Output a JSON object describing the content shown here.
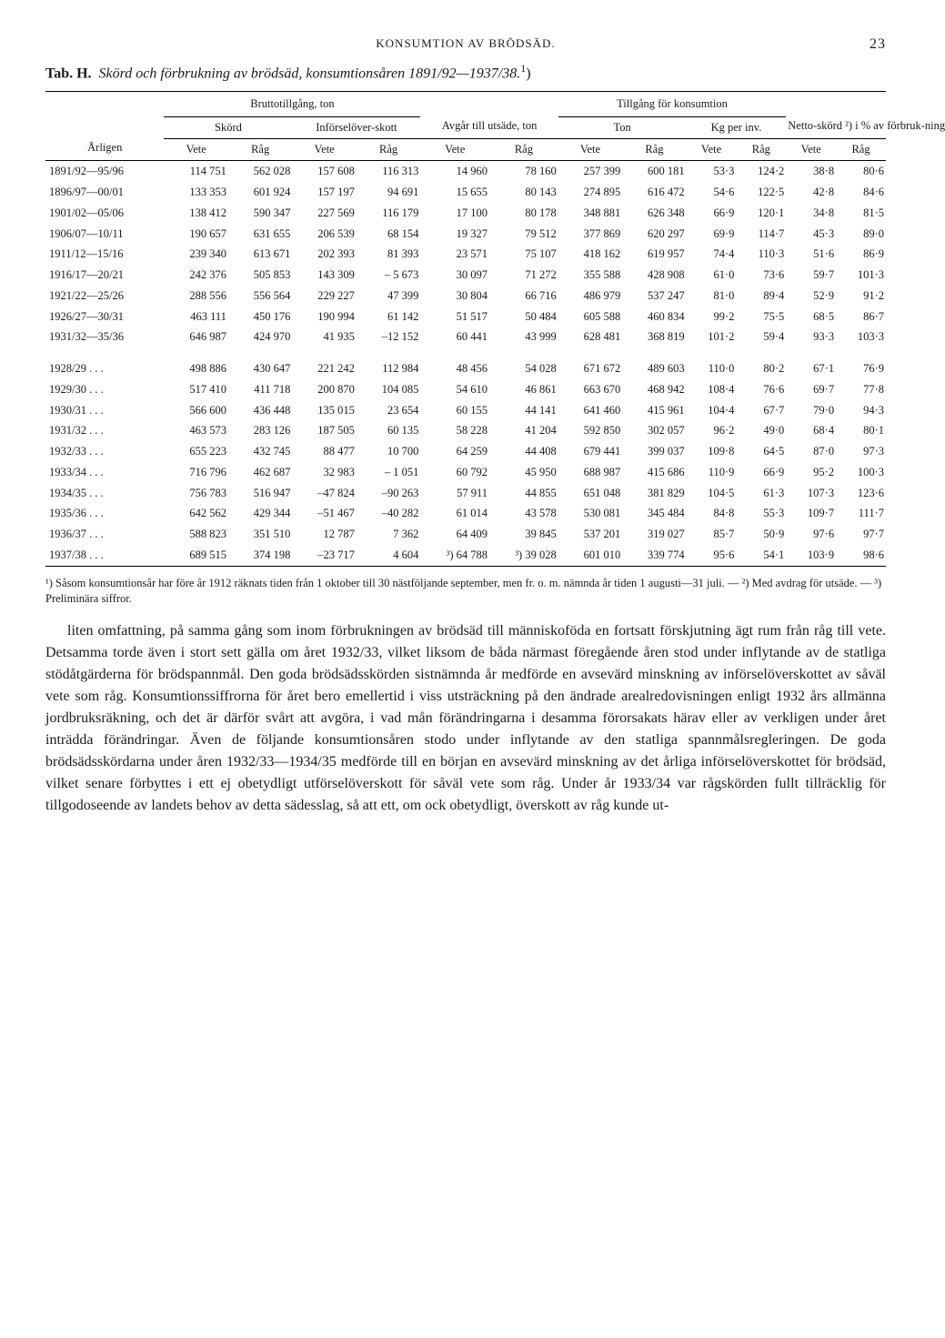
{
  "header": {
    "running_head": "KONSUMTION AV BRÖDSÄD.",
    "page_number": "23"
  },
  "tableTitle": {
    "prefix": "Tab. H.",
    "italic": "Skörd och förbrukning av brödsäd, konsumtionsåren 1891/92—1937/38.",
    "sup": "1",
    "suffix": ")"
  },
  "colHeaders": {
    "brutto": "Bruttotillgång, ton",
    "avgar": "Avgår till utsäde, ton",
    "tillgang": "Tillgång för konsumtion",
    "netto": "Netto-skörd ²) i % av förbruk-ning",
    "arligen": "Årligen",
    "skord": "Skörd",
    "inforsel": "Införselöver-skott",
    "ton": "Ton",
    "kgperinv": "Kg per inv.",
    "vete": "Vete",
    "rag": "Råg"
  },
  "rows": [
    {
      "period": "1891/92—95/96",
      "sv": "114 751",
      "sr": "562 028",
      "iv": "157 608",
      "ir": "116 313",
      "av": "14 960",
      "ar": "78 160",
      "tv": "257 399",
      "tr": "600 181",
      "kv": "53·3",
      "kr": "124·2",
      "nv": "38·8",
      "nr": "80·6"
    },
    {
      "period": "1896/97—00/01",
      "sv": "133 353",
      "sr": "601 924",
      "iv": "157 197",
      "ir": "94 691",
      "av": "15 655",
      "ar": "80 143",
      "tv": "274 895",
      "tr": "616 472",
      "kv": "54·6",
      "kr": "122·5",
      "nv": "42·8",
      "nr": "84·6"
    },
    {
      "period": "1901/02—05/06",
      "sv": "138 412",
      "sr": "590 347",
      "iv": "227 569",
      "ir": "116 179",
      "av": "17 100",
      "ar": "80 178",
      "tv": "348 881",
      "tr": "626 348",
      "kv": "66·9",
      "kr": "120·1",
      "nv": "34·8",
      "nr": "81·5"
    },
    {
      "period": "1906/07—10/11",
      "sv": "190 657",
      "sr": "631 655",
      "iv": "206 539",
      "ir": "68 154",
      "av": "19 327",
      "ar": "79 512",
      "tv": "377 869",
      "tr": "620 297",
      "kv": "69·9",
      "kr": "114·7",
      "nv": "45·3",
      "nr": "89·0"
    },
    {
      "period": "1911/12—15/16",
      "sv": "239 340",
      "sr": "613 671",
      "iv": "202 393",
      "ir": "81 393",
      "av": "23 571",
      "ar": "75 107",
      "tv": "418 162",
      "tr": "619 957",
      "kv": "74·4",
      "kr": "110·3",
      "nv": "51·6",
      "nr": "86·9"
    },
    {
      "period": "1916/17—20/21",
      "sv": "242 376",
      "sr": "505 853",
      "iv": "143 309",
      "ir": "– 5 673",
      "av": "30 097",
      "ar": "71 272",
      "tv": "355 588",
      "tr": "428 908",
      "kv": "61·0",
      "kr": "73·6",
      "nv": "59·7",
      "nr": "101·3"
    },
    {
      "period": "1921/22—25/26",
      "sv": "288 556",
      "sr": "556 564",
      "iv": "229 227",
      "ir": "47 399",
      "av": "30 804",
      "ar": "66 716",
      "tv": "486 979",
      "tr": "537 247",
      "kv": "81·0",
      "kr": "89·4",
      "nv": "52·9",
      "nr": "91·2"
    },
    {
      "period": "1926/27—30/31",
      "sv": "463 111",
      "sr": "450 176",
      "iv": "190 994",
      "ir": "61 142",
      "av": "51 517",
      "ar": "50 484",
      "tv": "605 588",
      "tr": "460 834",
      "kv": "99·2",
      "kr": "75·5",
      "nv": "68·5",
      "nr": "86·7"
    },
    {
      "period": "1931/32—35/36",
      "sv": "646 987",
      "sr": "424 970",
      "iv": "41 935",
      "ir": "–12 152",
      "av": "60 441",
      "ar": "43 999",
      "tv": "628 481",
      "tr": "368 819",
      "kv": "101·2",
      "kr": "59·4",
      "nv": "93·3",
      "nr": "103·3"
    },
    {
      "period": "1928/29 . . .",
      "sv": "498 886",
      "sr": "430 647",
      "iv": "221 242",
      "ir": "112 984",
      "av": "48 456",
      "ar": "54 028",
      "tv": "671 672",
      "tr": "489 603",
      "kv": "110·0",
      "kr": "80·2",
      "nv": "67·1",
      "nr": "76·9"
    },
    {
      "period": "1929/30 . . .",
      "sv": "517 410",
      "sr": "411 718",
      "iv": "200 870",
      "ir": "104 085",
      "av": "54 610",
      "ar": "46 861",
      "tv": "663 670",
      "tr": "468 942",
      "kv": "108·4",
      "kr": "76·6",
      "nv": "69·7",
      "nr": "77·8"
    },
    {
      "period": "1930/31 . . .",
      "sv": "566 600",
      "sr": "436 448",
      "iv": "135 015",
      "ir": "23 654",
      "av": "60 155",
      "ar": "44 141",
      "tv": "641 460",
      "tr": "415 961",
      "kv": "104·4",
      "kr": "67·7",
      "nv": "79·0",
      "nr": "94·3"
    },
    {
      "period": "1931/32 . . .",
      "sv": "463 573",
      "sr": "283 126",
      "iv": "187 505",
      "ir": "60 135",
      "av": "58 228",
      "ar": "41 204",
      "tv": "592 850",
      "tr": "302 057",
      "kv": "96·2",
      "kr": "49·0",
      "nv": "68·4",
      "nr": "80·1"
    },
    {
      "period": "1932/33 . . .",
      "sv": "655 223",
      "sr": "432 745",
      "iv": "88 477",
      "ir": "10 700",
      "av": "64 259",
      "ar": "44 408",
      "tv": "679 441",
      "tr": "399 037",
      "kv": "109·8",
      "kr": "64·5",
      "nv": "87·0",
      "nr": "97·3"
    },
    {
      "period": "1933/34 . . .",
      "sv": "716 796",
      "sr": "462 687",
      "iv": "32 983",
      "ir": "– 1 051",
      "av": "60 792",
      "ar": "45 950",
      "tv": "688 987",
      "tr": "415 686",
      "kv": "110·9",
      "kr": "66·9",
      "nv": "95·2",
      "nr": "100·3"
    },
    {
      "period": "1934/35 . . .",
      "sv": "756 783",
      "sr": "516 947",
      "iv": "–47 824",
      "ir": "–90 263",
      "av": "57 911",
      "ar": "44 855",
      "tv": "651 048",
      "tr": "381 829",
      "kv": "104·5",
      "kr": "61·3",
      "nv": "107·3",
      "nr": "123·6"
    },
    {
      "period": "1935/36 . . .",
      "sv": "642 562",
      "sr": "429 344",
      "iv": "–51 467",
      "ir": "–40 282",
      "av": "61 014",
      "ar": "43 578",
      "tv": "530 081",
      "tr": "345 484",
      "kv": "84·8",
      "kr": "55·3",
      "nv": "109·7",
      "nr": "111·7"
    },
    {
      "period": "1936/37 . . .",
      "sv": "588 823",
      "sr": "351 510",
      "iv": "12 787",
      "ir": "7 362",
      "av": "64 409",
      "ar": "39 845",
      "tv": "537 201",
      "tr": "319 027",
      "kv": "85·7",
      "kr": "50·9",
      "nv": "97·6",
      "nr": "97·7"
    },
    {
      "period": "1937/38 . . .",
      "sv": "689 515",
      "sr": "374 198",
      "iv": "–23 717",
      "ir": "4 604",
      "av": "³) 64 788",
      "ar": "³) 39 028",
      "tv": "601 010",
      "tr": "339 774",
      "kv": "95·6",
      "kr": "54·1",
      "nv": "103·9",
      "nr": "98·6"
    }
  ],
  "footnotes": "¹) Såsom konsumtionsår har före år 1912 räknats tiden från 1 oktober till 30 nästföljande september, men fr. o. m. nämnda år tiden 1 augusti—31 juli. — ²) Med avdrag för utsäde. — ³) Preliminära siffror.",
  "body": "liten omfattning, på samma gång som inom förbrukningen av brödsäd till människoföda en fortsatt förskjutning ägt rum från råg till vete. Detsamma torde även i stort sett gälla om året 1932/33, vilket liksom de båda närmast föregående åren stod under inflytande av de statliga stödåtgärderna för brödspannmål. Den goda brödsädsskörden sistnämnda år medförde en avsevärd minskning av införselöverskottet av såväl vete som råg. Konsumtionssiffrorna för året bero emellertid i viss utsträckning på den ändrade arealredovisningen enligt 1932 års allmänna jordbruksräkning, och det är därför svårt att avgöra, i vad mån förändringarna i desamma förorsakats härav eller av verkligen under året inträdda förändringar. Även de följande konsumtionsåren stodo under inflytande av den statliga spannmålsregleringen. De goda brödsädsskördarna under åren 1932/33—1934/35 medförde till en början en avsevärd minskning av det årliga införselöverskottet för brödsäd, vilket senare förbyttes i ett ej obetydligt utförselöverskott för såväl vete som råg. Under år 1933/34 var rågskörden fullt tillräcklig för tillgodoseende av landets behov av detta sädesslag, så att ett, om ock obetydligt, överskott av råg kunde ut-"
}
